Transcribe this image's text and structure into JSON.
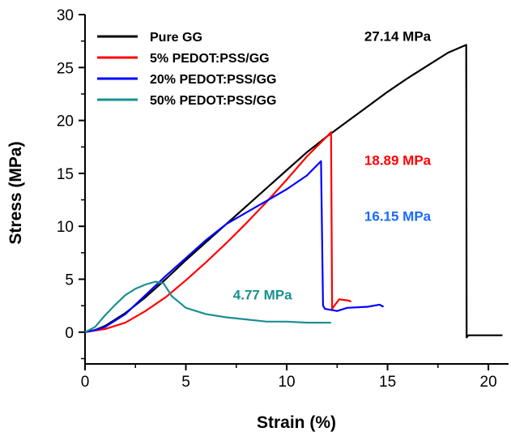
{
  "chart_data": {
    "type": "line",
    "title": "",
    "xlabel": "Strain (%)",
    "ylabel": "Stress (MPa)",
    "xlim": [
      0,
      21
    ],
    "ylim": [
      -3,
      30
    ],
    "x_ticks": [
      0,
      5,
      10,
      15,
      20
    ],
    "y_ticks": [
      0,
      5,
      10,
      15,
      20,
      25,
      30
    ],
    "x_tick_labels": [
      "0",
      "5",
      "10",
      "15",
      "20"
    ],
    "y_tick_labels": [
      "0",
      "5",
      "10",
      "15",
      "20",
      "25",
      "30"
    ],
    "grid": false,
    "legend_position": "top-left",
    "series": [
      {
        "name": "Pure GG",
        "color": "#000000",
        "x": [
          0,
          0.5,
          1,
          2,
          3,
          4,
          5,
          6,
          7,
          8,
          9,
          10,
          11,
          12,
          13,
          14,
          15,
          16,
          17,
          18,
          18.9,
          18.92,
          19,
          20,
          20.7
        ],
        "y": [
          0,
          0.2,
          0.6,
          1.8,
          3.3,
          5,
          6.8,
          8.5,
          10.2,
          11.9,
          13.6,
          15.3,
          17,
          18.5,
          19.9,
          21.3,
          22.7,
          24,
          25.2,
          26.4,
          27.14,
          -0.5,
          -0.3,
          -0.3,
          -0.3
        ]
      },
      {
        "name": "5% PEDOT:PSS/GG",
        "color": "#ff0000",
        "x": [
          0,
          1,
          2,
          3,
          4,
          5,
          6,
          7,
          8,
          9,
          10,
          11,
          12,
          12.2,
          12.25,
          12.4,
          12.6,
          13,
          13.2
        ],
        "y": [
          0,
          0.3,
          0.9,
          2,
          3.3,
          4.9,
          6.6,
          8.4,
          10.3,
          12.3,
          14.4,
          16.6,
          18.5,
          18.89,
          2.2,
          2.6,
          3.1,
          3,
          2.9
        ]
      },
      {
        "name": "20% PEDOT:PSS/GG",
        "color": "#0000ff",
        "x": [
          0,
          0.5,
          1,
          2,
          3,
          4,
          5,
          6,
          7,
          8,
          9,
          10,
          11,
          11.7,
          11.8,
          11.9,
          12.5,
          13,
          14,
          14.6,
          14.8
        ],
        "y": [
          0,
          0.2,
          0.5,
          1.7,
          3.5,
          5.3,
          7,
          8.7,
          10.2,
          11.3,
          12.4,
          13.5,
          14.8,
          16.15,
          2.5,
          2.2,
          2,
          2.3,
          2.4,
          2.6,
          2.4
        ]
      },
      {
        "name": "50% PEDOT:PSS/GG",
        "color": "#1a9090",
        "x": [
          0,
          0.5,
          1,
          1.5,
          2,
          2.5,
          3,
          3.5,
          3.9,
          4.3,
          5,
          6,
          7,
          8,
          9,
          10,
          11,
          12,
          12.2
        ],
        "y": [
          0,
          0.5,
          1.6,
          2.6,
          3.5,
          4.1,
          4.5,
          4.77,
          4.6,
          3.4,
          2.3,
          1.7,
          1.4,
          1.2,
          1,
          1,
          0.9,
          0.9,
          0.9
        ]
      }
    ],
    "annotations": [
      {
        "text": "27.14 MPa",
        "x": 15.5,
        "y": 27.5,
        "color": "#000000"
      },
      {
        "text": "18.89 MPa",
        "x": 15.5,
        "y": 15.8,
        "color": "#ff0000"
      },
      {
        "text": "16.15 MPa",
        "x": 15.5,
        "y": 10.5,
        "color": "#1a6aff"
      },
      {
        "text": "4.77 MPa",
        "x": 8.8,
        "y": 3.1,
        "color": "#1a9090"
      }
    ]
  }
}
